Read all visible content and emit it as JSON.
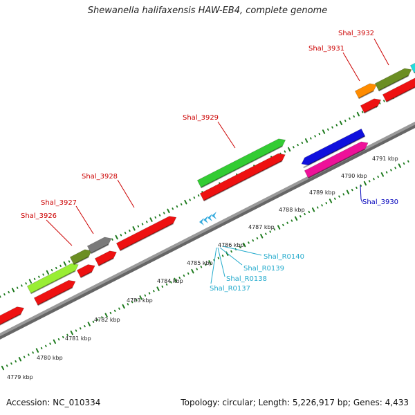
{
  "title": "Shewanella halifaxensis HAW-EB4, complete genome",
  "footer": {
    "accession": "Accession: NC_010334",
    "topology": "Topology: circular; Length: 5,226,917 bp; Genes: 4,433"
  },
  "colors": {
    "backbone": "#9a9a9a",
    "tick": "#1d7a1d",
    "gene_red": "#ee1111",
    "gene_green": "#33cc33",
    "gene_lime": "#99ee33",
    "gene_olive": "#6b8e23",
    "gene_gray": "#7a7a7a",
    "gene_orange": "#ff8c00",
    "gene_blue": "#1010dd",
    "gene_pink": "#ee1199",
    "gene_cyan": "#22dddd",
    "label_red": "#cc0000",
    "label_blue": "#0000bb",
    "label_cyan": "#22aacc"
  },
  "scale_labels": [
    {
      "text": "4779 kbp"
    },
    {
      "text": "4780 kbp"
    },
    {
      "text": "4781 kbp"
    },
    {
      "text": "4782 kbp"
    },
    {
      "text": "4783 kbp"
    },
    {
      "text": "4784 kbp"
    },
    {
      "text": "4785 kbp"
    },
    {
      "text": "4786 kbp"
    },
    {
      "text": "4787 kbp"
    },
    {
      "text": "4788 kbp"
    },
    {
      "text": "4789 kbp"
    },
    {
      "text": "4790 kbp"
    },
    {
      "text": "4791 kbp"
    }
  ],
  "gene_labels": [
    {
      "text": "Shal_3926",
      "color": "label_red"
    },
    {
      "text": "Shal_3927",
      "color": "label_red"
    },
    {
      "text": "Shal_3928",
      "color": "label_red"
    },
    {
      "text": "Shal_3929",
      "color": "label_red"
    },
    {
      "text": "Shal_3931",
      "color": "label_red"
    },
    {
      "text": "Shal_3932",
      "color": "label_red"
    },
    {
      "text": "Shal_3930",
      "color": "label_blue"
    },
    {
      "text": "Shal_R0137",
      "color": "label_cyan"
    },
    {
      "text": "Shal_R0138",
      "color": "label_cyan"
    },
    {
      "text": "Shal_R0139",
      "color": "label_cyan"
    },
    {
      "text": "Shal_R0140",
      "color": "label_cyan"
    }
  ]
}
